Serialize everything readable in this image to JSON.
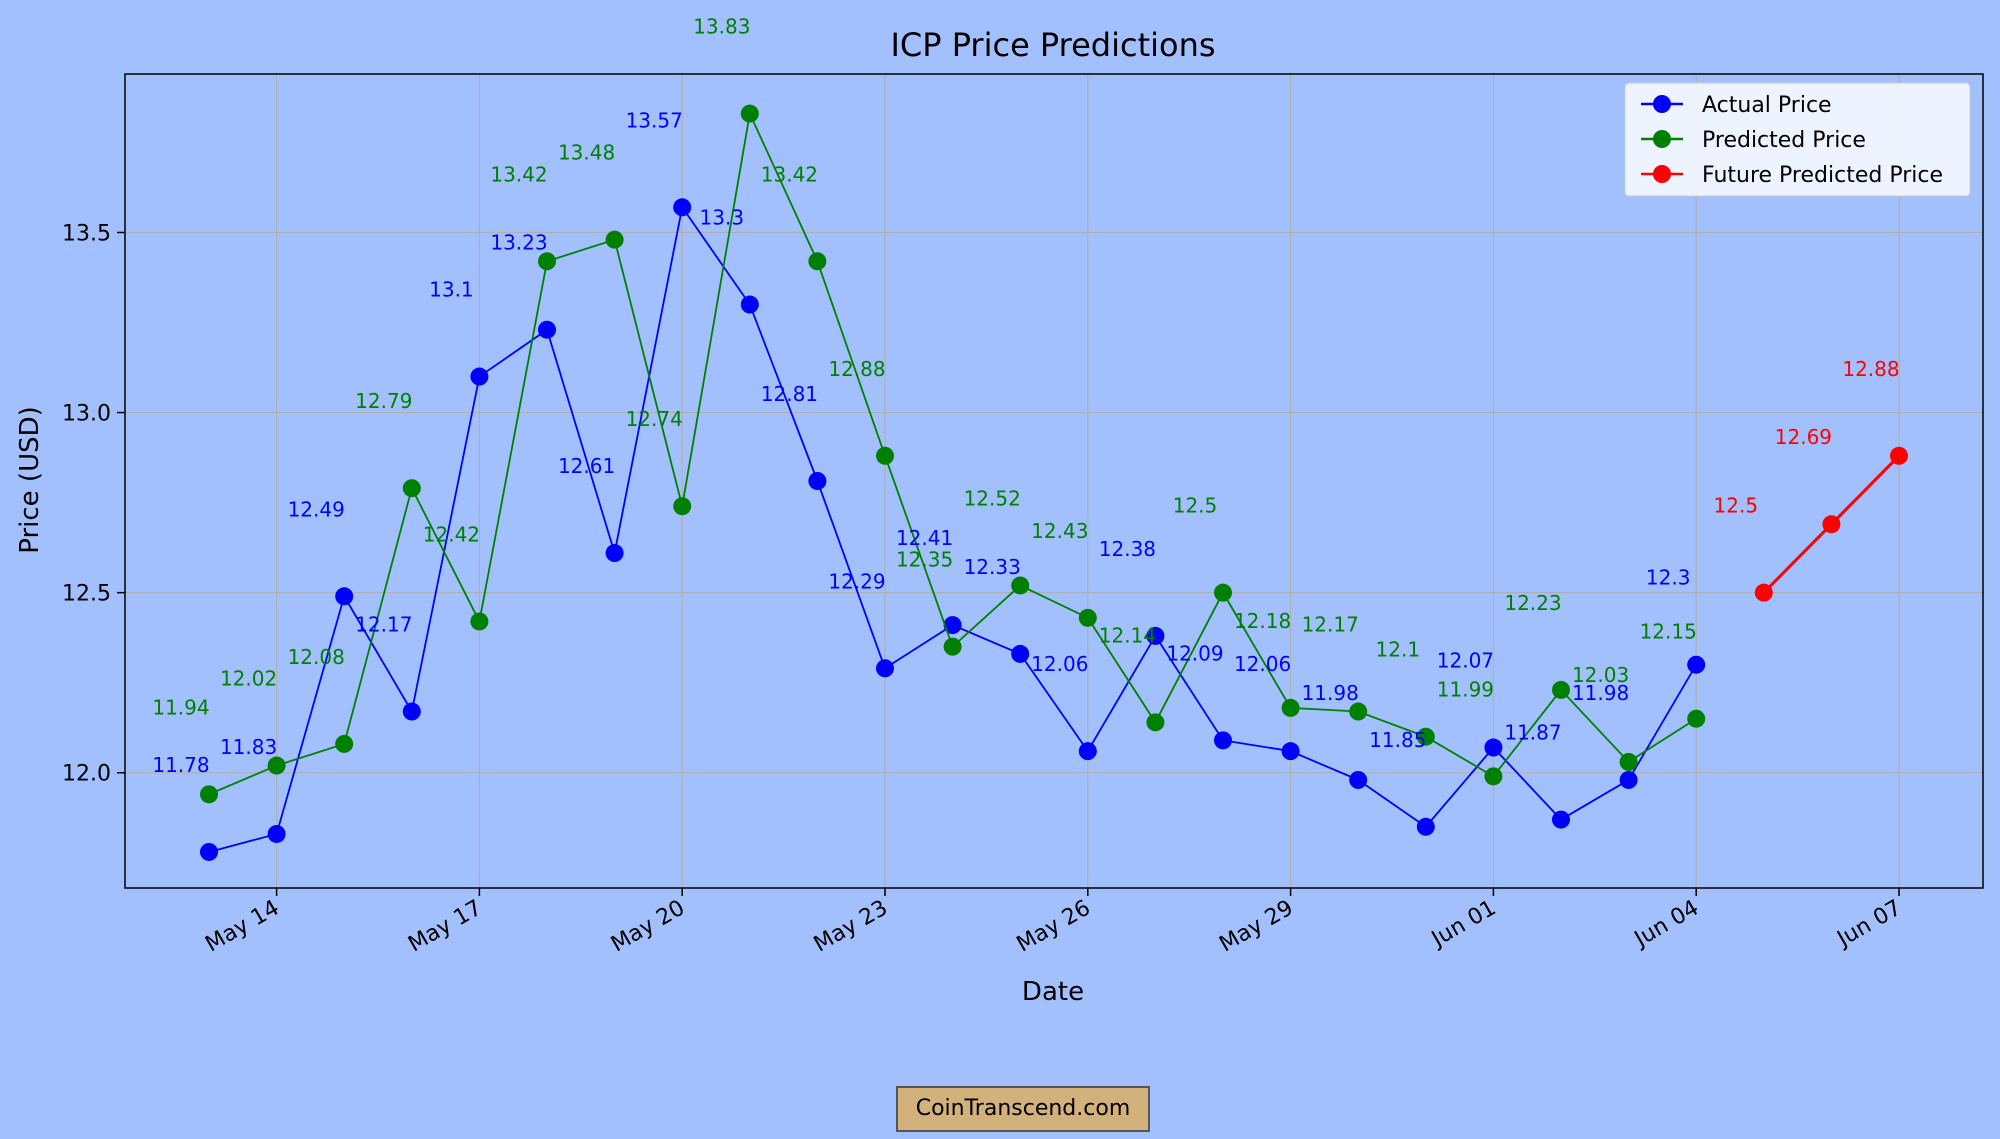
{
  "chart_data": {
    "type": "line",
    "title": "ICP Price Predictions",
    "xlabel": "Date",
    "ylabel": "Price (USD)",
    "x_tick_labels": [
      "May 14",
      "May 17",
      "May 20",
      "May 23",
      "May 26",
      "May 29",
      "Jun 01",
      "Jun 04",
      "Jun 07"
    ],
    "y_tick_labels": [
      "12.0",
      "12.5",
      "13.0",
      "13.5"
    ],
    "ylim": [
      11.68,
      13.94
    ],
    "grid": true,
    "legend_position": "top-right",
    "x_start_date": "May 13",
    "series": [
      {
        "name": "Actual Price",
        "color": "#0000ff",
        "day_offset_start": 0,
        "values": [
          11.78,
          11.83,
          12.49,
          12.17,
          13.1,
          13.23,
          12.61,
          13.57,
          13.3,
          12.81,
          12.29,
          12.41,
          12.33,
          12.06,
          12.38,
          12.09,
          12.06,
          11.98,
          11.85,
          12.07,
          11.87,
          11.98,
          12.3
        ]
      },
      {
        "name": "Predicted Price",
        "color": "#008000",
        "day_offset_start": 0,
        "values": [
          11.94,
          12.02,
          12.08,
          12.79,
          12.42,
          13.42,
          13.48,
          12.74,
          13.83,
          13.42,
          12.88,
          12.35,
          12.52,
          12.43,
          12.14,
          12.5,
          12.18,
          12.17,
          12.1,
          11.99,
          12.23,
          12.03,
          12.15
        ]
      },
      {
        "name": "Future Predicted Price",
        "color": "#ff0000",
        "day_offset_start": 23,
        "values": [
          12.5,
          12.69,
          12.88
        ]
      }
    ]
  },
  "watermark": {
    "text": "CoinTranscend.com"
  },
  "colors": {
    "background": "#a2bffe",
    "grid": "#b0b0b0",
    "axis": "#000000",
    "legend_bg": "#ffffff"
  }
}
